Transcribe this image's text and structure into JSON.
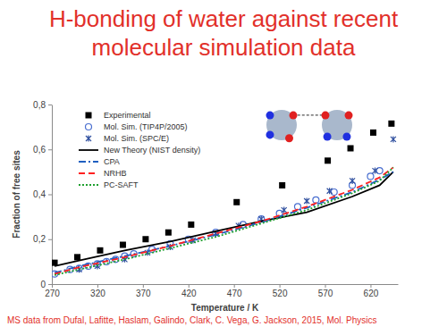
{
  "chart_data": {
    "type": "scatter",
    "title": "H-bonding of water against recent molecular simulation data",
    "xlabel": "Temperature / K",
    "ylabel": "Fraction of free sites",
    "annotations": [
      "MS data from Dufal, Lafitte, Haslam, Galindo, Clark, C. Vega, G. Jackson, 2015, Mol. Physics"
    ],
    "xlim": [
      270,
      650
    ],
    "xticks": [
      270,
      320,
      370,
      420,
      470,
      520,
      570,
      620
    ],
    "ylim": [
      0,
      0.8
    ],
    "yticks": [
      0,
      {
        "value": 0.2,
        "label": "0,2"
      },
      {
        "value": 0.4,
        "label": "0,4"
      },
      {
        "value": 0.6,
        "label": "0,6"
      },
      {
        "value": 0.8,
        "label": "0,8"
      }
    ],
    "grid": false,
    "legend": "top-left",
    "series": [
      {
        "name": "Experimental",
        "type": "scatter",
        "marker": "square",
        "color": "#000000",
        "x": [
          273,
          298,
          323,
          348,
          373,
          398,
          423,
          473,
          523,
          573,
          598,
          623,
          643
        ],
        "values": [
          0.095,
          0.12,
          0.15,
          0.175,
          0.2,
          0.23,
          0.265,
          0.365,
          0.44,
          0.55,
          0.605,
          0.675,
          0.715
        ]
      },
      {
        "name": "Mol. Sim. (TIP4P/2005)",
        "type": "scatter",
        "marker": "circle",
        "color": "#4a6fd0",
        "x": [
          273,
          290,
          300,
          310,
          320,
          330,
          340,
          350,
          360,
          380,
          400,
          420,
          450,
          480,
          500,
          520,
          540,
          560,
          580,
          600,
          620,
          630
        ],
        "values": [
          0.045,
          0.065,
          0.07,
          0.08,
          0.09,
          0.1,
          0.11,
          0.125,
          0.135,
          0.155,
          0.18,
          0.2,
          0.23,
          0.265,
          0.29,
          0.315,
          0.345,
          0.375,
          0.41,
          0.44,
          0.48,
          0.505
        ]
      },
      {
        "name": "Mol. Sim. (SPC/E)",
        "type": "scatter",
        "marker": "x",
        "color": "#2f4f9f",
        "x": [
          300,
          320,
          350,
          375,
          400,
          425,
          450,
          475,
          500,
          525,
          550,
          575,
          600,
          625,
          645
        ],
        "values": [
          0.065,
          0.08,
          0.11,
          0.14,
          0.165,
          0.195,
          0.225,
          0.26,
          0.29,
          0.33,
          0.37,
          0.415,
          0.46,
          0.505,
          0.645
        ]
      },
      {
        "name": "New Theory (NIST density)",
        "type": "line",
        "line_style": "solid",
        "color": "#000000",
        "x": [
          273,
          300,
          350,
          400,
          450,
          500,
          550,
          600,
          630,
          645
        ],
        "values": [
          0.08,
          0.105,
          0.15,
          0.19,
          0.235,
          0.28,
          0.32,
          0.39,
          0.44,
          0.5
        ]
      },
      {
        "name": "CPA",
        "type": "line",
        "line_style": "dashdot",
        "color": "#1f5fc0",
        "x": [
          273,
          300,
          350,
          400,
          450,
          500,
          550,
          600,
          630,
          645
        ],
        "values": [
          0.05,
          0.08,
          0.125,
          0.17,
          0.22,
          0.275,
          0.34,
          0.41,
          0.465,
          0.5
        ]
      },
      {
        "name": "NRHB",
        "type": "line",
        "line_style": "dashed",
        "color": "#ff2020",
        "x": [
          273,
          300,
          350,
          400,
          450,
          500,
          550,
          600,
          630,
          645
        ],
        "values": [
          0.045,
          0.075,
          0.12,
          0.17,
          0.225,
          0.28,
          0.345,
          0.42,
          0.475,
          0.52
        ]
      },
      {
        "name": "PC-SAFT",
        "type": "line",
        "line_style": "dotted",
        "color": "#1fa02f",
        "x": [
          273,
          300,
          350,
          400,
          450,
          500,
          550,
          600,
          630,
          645
        ],
        "values": [
          0.04,
          0.065,
          0.11,
          0.16,
          0.21,
          0.27,
          0.33,
          0.405,
          0.46,
          0.52
        ]
      }
    ]
  }
}
